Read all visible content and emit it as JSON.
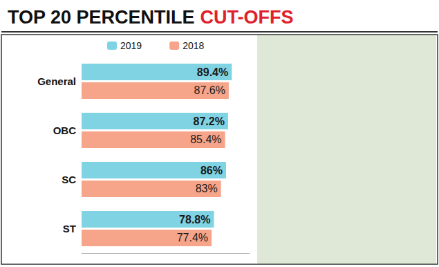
{
  "chart_data": {
    "type": "bar",
    "orientation": "horizontal",
    "title": "TOP 20 PERCENTILE CUT-OFFS",
    "categories": [
      "General",
      "OBC",
      "SC",
      "ST"
    ],
    "series": [
      {
        "name": "2019",
        "color": "#7fd3e3",
        "values": [
          89.4,
          87.2,
          86,
          78.8
        ],
        "value_labels": [
          "89.4%",
          "87.2%",
          "86%",
          "78.8%"
        ]
      },
      {
        "name": "2018",
        "color": "#f6a58a",
        "values": [
          87.6,
          85.4,
          83,
          77.4
        ],
        "value_labels": [
          "87.6%",
          "85.4%",
          "83%",
          "77.4%"
        ]
      }
    ],
    "xlim": [
      0,
      100
    ],
    "xticks": [],
    "grid": false,
    "legend": "top",
    "data_labels": true,
    "tick_labels": "y"
  }
}
